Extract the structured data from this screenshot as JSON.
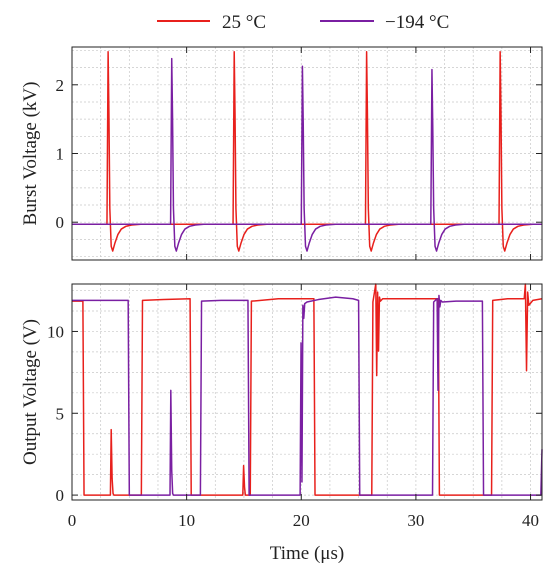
{
  "chart_data": [
    {
      "type": "line",
      "ylabel": "Burst Voltage (kV)",
      "xlim": [
        0,
        41
      ],
      "ylim": [
        -0.55,
        2.55
      ],
      "xticks": [
        0,
        10,
        20,
        30,
        40
      ],
      "yticks": [
        0,
        1,
        2
      ],
      "ytick_labels": [
        "0",
        "1",
        "2"
      ],
      "grid": true,
      "legend": "top",
      "series": [
        {
          "name": "25 °C",
          "color": "#e8201c",
          "x": [
            0,
            3.05,
            3.15,
            3.22,
            3.3,
            3.42,
            3.55,
            3.75,
            4.0,
            4.3,
            4.7,
            5.2,
            6.0,
            8.0,
            14.05,
            14.15,
            14.22,
            14.3,
            14.42,
            14.55,
            14.75,
            15.0,
            15.3,
            15.7,
            16.2,
            17.0,
            20.0,
            25.6,
            25.7,
            25.77,
            25.85,
            25.97,
            26.1,
            26.3,
            26.55,
            26.85,
            27.25,
            27.75,
            28.5,
            31.0,
            37.25,
            37.35,
            37.42,
            37.5,
            37.62,
            37.75,
            37.95,
            38.2,
            38.5,
            38.9,
            39.4,
            40.2,
            41
          ],
          "y": [
            -0.03,
            -0.03,
            2.48,
            1.6,
            0.2,
            -0.35,
            -0.42,
            -0.3,
            -0.18,
            -0.1,
            -0.06,
            -0.04,
            -0.03,
            -0.03,
            -0.03,
            2.48,
            1.6,
            0.2,
            -0.35,
            -0.42,
            -0.3,
            -0.18,
            -0.1,
            -0.06,
            -0.04,
            -0.03,
            -0.03,
            -0.03,
            2.48,
            1.6,
            0.2,
            -0.35,
            -0.42,
            -0.3,
            -0.18,
            -0.1,
            -0.06,
            -0.04,
            -0.03,
            -0.03,
            -0.03,
            2.48,
            1.6,
            0.2,
            -0.35,
            -0.42,
            -0.3,
            -0.18,
            -0.1,
            -0.06,
            -0.04,
            -0.03,
            -0.03
          ]
        },
        {
          "name": "−194 °C",
          "color": "#7a1fa2",
          "x": [
            0,
            8.6,
            8.7,
            8.77,
            8.85,
            8.97,
            9.1,
            9.3,
            9.55,
            9.85,
            10.25,
            10.75,
            11.5,
            14.0,
            20.0,
            20.1,
            20.17,
            20.25,
            20.37,
            20.5,
            20.7,
            20.95,
            21.25,
            21.65,
            22.15,
            23.0,
            26.0,
            31.3,
            31.4,
            31.47,
            31.55,
            31.67,
            31.8,
            32.0,
            32.25,
            32.55,
            32.95,
            33.45,
            34.2,
            41
          ],
          "y": [
            -0.03,
            -0.03,
            2.38,
            1.55,
            0.2,
            -0.35,
            -0.42,
            -0.3,
            -0.18,
            -0.1,
            -0.06,
            -0.04,
            -0.03,
            -0.03,
            -0.03,
            2.27,
            1.45,
            0.2,
            -0.35,
            -0.42,
            -0.3,
            -0.18,
            -0.1,
            -0.06,
            -0.04,
            -0.03,
            -0.03,
            -0.03,
            2.22,
            1.4,
            0.2,
            -0.35,
            -0.42,
            -0.3,
            -0.18,
            -0.1,
            -0.06,
            -0.04,
            -0.03,
            -0.03
          ]
        }
      ]
    },
    {
      "type": "line",
      "xlabel": "Time (μs)",
      "ylabel": "Output Voltage (V)",
      "xlim": [
        0,
        41
      ],
      "ylim": [
        -0.3,
        12.9
      ],
      "xticks": [
        0,
        10,
        20,
        30,
        40
      ],
      "xtick_labels": [
        "0",
        "10",
        "20",
        "30",
        "40"
      ],
      "yticks": [
        0,
        5,
        10
      ],
      "ytick_labels": [
        "0",
        "5",
        "10"
      ],
      "grid": true,
      "series": [
        {
          "name": "25 °C",
          "color": "#e8201c",
          "x": [
            0,
            0.95,
            1.05,
            3.35,
            3.42,
            3.5,
            3.58,
            3.65,
            6.05,
            6.15,
            8.0,
            10.3,
            10.4,
            14.9,
            14.97,
            15.05,
            15.12,
            15.2,
            15.55,
            15.65,
            18.0,
            21.1,
            21.2,
            26.15,
            26.25,
            26.5,
            26.58,
            26.66,
            26.74,
            26.82,
            26.9,
            27.1,
            30.0,
            31.95,
            32.05,
            36.6,
            36.7,
            38.0,
            39.45,
            39.55,
            39.65,
            39.75,
            39.85,
            40.2,
            41
          ],
          "y": [
            11.85,
            11.85,
            0,
            0,
            4.0,
            1.0,
            0.1,
            0,
            0,
            11.9,
            11.95,
            12.0,
            0,
            0,
            1.8,
            0.5,
            0,
            0,
            0,
            11.85,
            12.0,
            12.0,
            0,
            0,
            11.8,
            12.9,
            7.3,
            12.4,
            8.8,
            12.1,
            11.85,
            12.0,
            12.0,
            12.0,
            0,
            0,
            11.9,
            12.0,
            12.0,
            12.9,
            7.6,
            12.4,
            11.6,
            11.9,
            12.0
          ]
        },
        {
          "name": "−194 °C",
          "color": "#7a1fa2",
          "x": [
            0,
            4.9,
            5.0,
            8.55,
            8.62,
            8.7,
            8.78,
            8.85,
            11.2,
            11.3,
            13.0,
            15.35,
            15.45,
            19.9,
            19.98,
            20.06,
            20.14,
            20.22,
            20.3,
            20.5,
            21.5,
            23.0,
            24.5,
            25.0,
            25.1,
            31.45,
            31.55,
            31.85,
            31.93,
            32.01,
            32.09,
            32.17,
            32.3,
            33.5,
            35.8,
            35.9,
            40.9,
            41
          ],
          "y": [
            11.9,
            11.9,
            0,
            0,
            6.4,
            1.5,
            0.1,
            0,
            0,
            11.85,
            11.9,
            11.9,
            0,
            0,
            9.3,
            0.8,
            11.6,
            10.8,
            11.7,
            11.8,
            11.95,
            12.1,
            12.0,
            11.9,
            0,
            0,
            11.8,
            12.0,
            6.4,
            12.2,
            11.5,
            11.9,
            11.8,
            11.85,
            11.85,
            0,
            0,
            2.8
          ]
        }
      ]
    }
  ]
}
